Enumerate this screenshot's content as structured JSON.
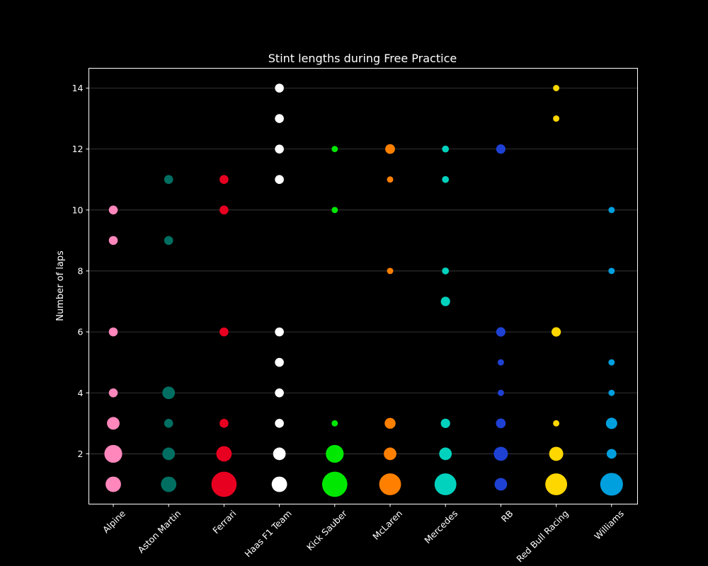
{
  "chart_data": {
    "type": "scatter",
    "title": "Stint lengths during Free Practice",
    "xlabel": "",
    "ylabel": "Number of laps",
    "categories": [
      "Alpine",
      "Aston Martin",
      "Ferrari",
      "Haas F1 Team",
      "Kick Sauber",
      "McLaren",
      "Mercedes",
      "RB",
      "Red Bull Racing",
      "Williams"
    ],
    "yticks": [
      2,
      4,
      6,
      8,
      10,
      12,
      14
    ],
    "ylim": [
      0.35,
      14.65
    ],
    "grid": "horizontal",
    "size_encoding": "number of stints",
    "series": [
      {
        "team": "Alpine",
        "color": "#FF87BC",
        "points": [
          {
            "laps": 1,
            "count": 3
          },
          {
            "laps": 2,
            "count": 4
          },
          {
            "laps": 3,
            "count": 2
          },
          {
            "laps": 4,
            "count": 1
          },
          {
            "laps": 6,
            "count": 1
          },
          {
            "laps": 9,
            "count": 1
          },
          {
            "laps": 10,
            "count": 1
          }
        ]
      },
      {
        "team": "Aston Martin",
        "color": "#006F62",
        "points": [
          {
            "laps": 1,
            "count": 3
          },
          {
            "laps": 2,
            "count": 2
          },
          {
            "laps": 3,
            "count": 1
          },
          {
            "laps": 4,
            "count": 2
          },
          {
            "laps": 9,
            "count": 1
          },
          {
            "laps": 11,
            "count": 1
          }
        ]
      },
      {
        "team": "Ferrari",
        "color": "#E80020",
        "points": [
          {
            "laps": 1,
            "count": 8
          },
          {
            "laps": 2,
            "count": 3
          },
          {
            "laps": 3,
            "count": 1
          },
          {
            "laps": 6,
            "count": 1
          },
          {
            "laps": 10,
            "count": 1
          },
          {
            "laps": 11,
            "count": 1
          }
        ]
      },
      {
        "team": "Haas F1 Team",
        "color": "#FFFFFF",
        "points": [
          {
            "laps": 1,
            "count": 3
          },
          {
            "laps": 2,
            "count": 2
          },
          {
            "laps": 3,
            "count": 1
          },
          {
            "laps": 4,
            "count": 1
          },
          {
            "laps": 5,
            "count": 1
          },
          {
            "laps": 6,
            "count": 1
          },
          {
            "laps": 11,
            "count": 1
          },
          {
            "laps": 12,
            "count": 1
          },
          {
            "laps": 13,
            "count": 1
          },
          {
            "laps": 14,
            "count": 1
          }
        ]
      },
      {
        "team": "Kick Sauber",
        "color": "#00E701",
        "points": [
          {
            "laps": 1,
            "count": 8
          },
          {
            "laps": 2,
            "count": 4
          },
          {
            "laps": 3,
            "count": 0.5
          },
          {
            "laps": 10,
            "count": 0.5
          },
          {
            "laps": 12,
            "count": 0.5
          }
        ]
      },
      {
        "team": "McLaren",
        "color": "#FF8000",
        "points": [
          {
            "laps": 1,
            "count": 6
          },
          {
            "laps": 2,
            "count": 2
          },
          {
            "laps": 3,
            "count": 1.5
          },
          {
            "laps": 8,
            "count": 0.5
          },
          {
            "laps": 11,
            "count": 0.5
          },
          {
            "laps": 12,
            "count": 1.2
          }
        ]
      },
      {
        "team": "Mercedes",
        "color": "#00D2BE",
        "points": [
          {
            "laps": 1,
            "count": 6
          },
          {
            "laps": 2,
            "count": 2
          },
          {
            "laps": 3,
            "count": 1.1
          },
          {
            "laps": 7,
            "count": 1.1
          },
          {
            "laps": 8,
            "count": 0.6
          },
          {
            "laps": 11,
            "count": 0.6
          },
          {
            "laps": 12,
            "count": 0.6
          }
        ]
      },
      {
        "team": "RB",
        "color": "#1E41D4",
        "points": [
          {
            "laps": 1,
            "count": 2
          },
          {
            "laps": 2,
            "count": 2.5
          },
          {
            "laps": 3,
            "count": 1.2
          },
          {
            "laps": 4,
            "count": 0.5
          },
          {
            "laps": 5,
            "count": 0.5
          },
          {
            "laps": 6,
            "count": 1.1
          },
          {
            "laps": 12,
            "count": 1.1
          }
        ]
      },
      {
        "team": "Red Bull Racing",
        "color": "#FFD700",
        "points": [
          {
            "laps": 1,
            "count": 6
          },
          {
            "laps": 2,
            "count": 2.5
          },
          {
            "laps": 3,
            "count": 0.5
          },
          {
            "laps": 6,
            "count": 1.1
          },
          {
            "laps": 13,
            "count": 0.5
          },
          {
            "laps": 14,
            "count": 0.5
          }
        ]
      },
      {
        "team": "Williams",
        "color": "#00A0DE",
        "points": [
          {
            "laps": 1,
            "count": 6.5
          },
          {
            "laps": 2,
            "count": 1.2
          },
          {
            "laps": 3,
            "count": 1.6
          },
          {
            "laps": 4,
            "count": 0.5
          },
          {
            "laps": 5,
            "count": 0.5
          },
          {
            "laps": 8,
            "count": 0.5
          },
          {
            "laps": 10,
            "count": 0.5
          }
        ]
      }
    ]
  }
}
